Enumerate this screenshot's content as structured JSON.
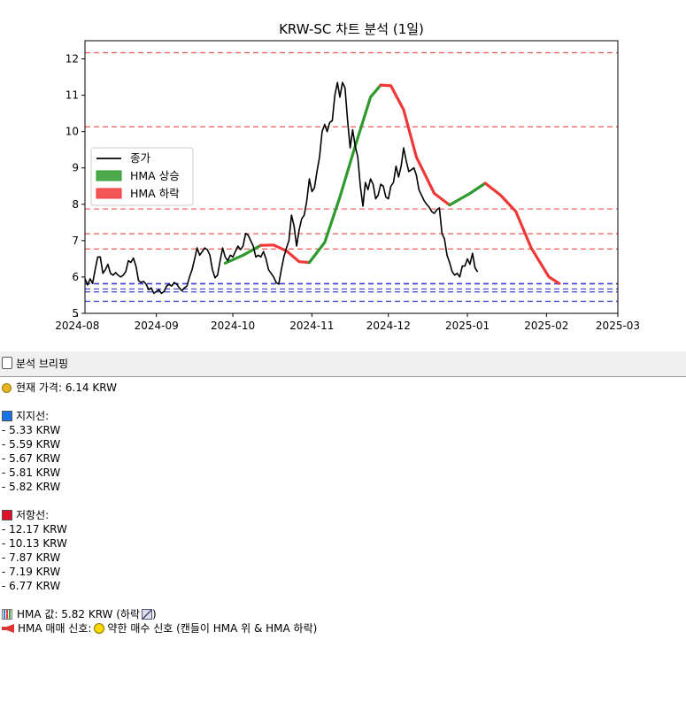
{
  "chart_data": {
    "type": "line",
    "title": "KRW-SC 차트 분석 (1일)",
    "x_start": "2024-08-04",
    "x_end": "2025-03-01",
    "ylim": [
      5,
      12.5
    ],
    "yticks": [
      5,
      6,
      7,
      8,
      9,
      10,
      11,
      12
    ],
    "xticks": [
      {
        "date": "2024-08-01",
        "label": "2024-08"
      },
      {
        "date": "2024-09-01",
        "label": "2024-09"
      },
      {
        "date": "2024-10-01",
        "label": "2024-10"
      },
      {
        "date": "2024-11-01",
        "label": "2024-11"
      },
      {
        "date": "2024-12-01",
        "label": "2024-12"
      },
      {
        "date": "2025-01-01",
        "label": "2025-01"
      },
      {
        "date": "2025-02-01",
        "label": "2025-02"
      },
      {
        "date": "2025-03-01",
        "label": "2025-03"
      }
    ],
    "legend": {
      "placement": "center-left",
      "entries": [
        {
          "label": "종가",
          "color": "#000000",
          "kind": "line"
        },
        {
          "label": "HMA 상승",
          "color": "#2e9a2e",
          "kind": "patch"
        },
        {
          "label": "HMA 하락",
          "color": "#f03838",
          "kind": "patch"
        }
      ]
    },
    "grid": false,
    "close_series": {
      "name": "종가",
      "color": "#000000",
      "points": [
        [
          "2024-08-04",
          5.96
        ],
        [
          "2024-08-05",
          5.78
        ],
        [
          "2024-08-06",
          5.95
        ],
        [
          "2024-08-07",
          5.82
        ],
        [
          "2024-08-08",
          6.2
        ],
        [
          "2024-08-09",
          6.55
        ],
        [
          "2024-08-10",
          6.55
        ],
        [
          "2024-08-11",
          6.1
        ],
        [
          "2024-08-12",
          6.2
        ],
        [
          "2024-08-13",
          6.35
        ],
        [
          "2024-08-14",
          6.1
        ],
        [
          "2024-08-15",
          6.05
        ],
        [
          "2024-08-16",
          6.12
        ],
        [
          "2024-08-17",
          6.05
        ],
        [
          "2024-08-18",
          6.0
        ],
        [
          "2024-08-19",
          6.05
        ],
        [
          "2024-08-20",
          6.15
        ],
        [
          "2024-08-21",
          6.45
        ],
        [
          "2024-08-22",
          6.4
        ],
        [
          "2024-08-23",
          6.52
        ],
        [
          "2024-08-24",
          6.3
        ],
        [
          "2024-08-25",
          5.9
        ],
        [
          "2024-08-26",
          5.85
        ],
        [
          "2024-08-27",
          5.88
        ],
        [
          "2024-08-28",
          5.8
        ],
        [
          "2024-08-29",
          5.65
        ],
        [
          "2024-08-30",
          5.7
        ],
        [
          "2024-08-31",
          5.55
        ],
        [
          "2024-09-01",
          5.6
        ],
        [
          "2024-09-02",
          5.65
        ],
        [
          "2024-09-03",
          5.55
        ],
        [
          "2024-09-04",
          5.6
        ],
        [
          "2024-09-05",
          5.75
        ],
        [
          "2024-09-06",
          5.8
        ],
        [
          "2024-09-07",
          5.75
        ],
        [
          "2024-09-08",
          5.85
        ],
        [
          "2024-09-09",
          5.8
        ],
        [
          "2024-09-10",
          5.7
        ],
        [
          "2024-09-11",
          5.62
        ],
        [
          "2024-09-12",
          5.7
        ],
        [
          "2024-09-13",
          5.75
        ],
        [
          "2024-09-14",
          6.0
        ],
        [
          "2024-09-15",
          6.2
        ],
        [
          "2024-09-16",
          6.5
        ],
        [
          "2024-09-17",
          6.8
        ],
        [
          "2024-09-18",
          6.6
        ],
        [
          "2024-09-19",
          6.7
        ],
        [
          "2024-09-20",
          6.8
        ],
        [
          "2024-09-21",
          6.75
        ],
        [
          "2024-09-22",
          6.6
        ],
        [
          "2024-09-23",
          6.2
        ],
        [
          "2024-09-24",
          5.98
        ],
        [
          "2024-09-25",
          6.05
        ],
        [
          "2024-09-26",
          6.45
        ],
        [
          "2024-09-27",
          6.8
        ],
        [
          "2024-09-28",
          6.55
        ],
        [
          "2024-09-29",
          6.45
        ],
        [
          "2024-09-30",
          6.6
        ],
        [
          "2024-10-01",
          6.55
        ],
        [
          "2024-10-02",
          6.7
        ],
        [
          "2024-10-03",
          6.85
        ],
        [
          "2024-10-04",
          6.75
        ],
        [
          "2024-10-05",
          6.85
        ],
        [
          "2024-10-06",
          7.2
        ],
        [
          "2024-10-07",
          7.15
        ],
        [
          "2024-10-08",
          7.0
        ],
        [
          "2024-10-09",
          6.85
        ],
        [
          "2024-10-10",
          6.55
        ],
        [
          "2024-10-11",
          6.6
        ],
        [
          "2024-10-12",
          6.55
        ],
        [
          "2024-10-13",
          6.7
        ],
        [
          "2024-10-14",
          6.5
        ],
        [
          "2024-10-15",
          6.2
        ],
        [
          "2024-10-16",
          6.1
        ],
        [
          "2024-10-17",
          6.0
        ],
        [
          "2024-10-18",
          5.85
        ],
        [
          "2024-10-19",
          5.8
        ],
        [
          "2024-10-20",
          6.2
        ],
        [
          "2024-10-21",
          6.55
        ],
        [
          "2024-10-22",
          6.8
        ],
        [
          "2024-10-23",
          7.0
        ],
        [
          "2024-10-24",
          7.7
        ],
        [
          "2024-10-25",
          7.4
        ],
        [
          "2024-10-26",
          6.85
        ],
        [
          "2024-10-27",
          7.3
        ],
        [
          "2024-10-28",
          7.6
        ],
        [
          "2024-10-29",
          7.7
        ],
        [
          "2024-10-30",
          8.1
        ],
        [
          "2024-10-31",
          8.7
        ],
        [
          "2024-11-01",
          8.35
        ],
        [
          "2024-11-02",
          8.45
        ],
        [
          "2024-11-03",
          8.9
        ],
        [
          "2024-11-04",
          9.3
        ],
        [
          "2024-11-05",
          10.0
        ],
        [
          "2024-11-06",
          10.2
        ],
        [
          "2024-11-07",
          10.0
        ],
        [
          "2024-11-08",
          10.25
        ],
        [
          "2024-11-09",
          10.3
        ],
        [
          "2024-11-10",
          11.0
        ],
        [
          "2024-11-11",
          11.35
        ],
        [
          "2024-11-12",
          10.95
        ],
        [
          "2024-11-13",
          11.35
        ],
        [
          "2024-11-14",
          11.2
        ],
        [
          "2024-11-15",
          10.3
        ],
        [
          "2024-11-16",
          9.55
        ],
        [
          "2024-11-17",
          10.05
        ],
        [
          "2024-11-18",
          9.6
        ],
        [
          "2024-11-19",
          9.3
        ],
        [
          "2024-11-20",
          8.5
        ],
        [
          "2024-11-21",
          7.95
        ],
        [
          "2024-11-22",
          8.6
        ],
        [
          "2024-11-23",
          8.4
        ],
        [
          "2024-11-24",
          8.7
        ],
        [
          "2024-11-25",
          8.55
        ],
        [
          "2024-11-26",
          8.15
        ],
        [
          "2024-11-27",
          8.25
        ],
        [
          "2024-11-28",
          8.55
        ],
        [
          "2024-11-29",
          8.5
        ],
        [
          "2024-11-30",
          8.2
        ],
        [
          "2024-12-01",
          8.15
        ],
        [
          "2024-12-02",
          8.5
        ],
        [
          "2024-12-03",
          8.6
        ],
        [
          "2024-12-04",
          9.05
        ],
        [
          "2024-12-05",
          8.75
        ],
        [
          "2024-12-06",
          9.05
        ],
        [
          "2024-12-07",
          9.55
        ],
        [
          "2024-12-08",
          9.2
        ],
        [
          "2024-12-09",
          8.9
        ],
        [
          "2024-12-10",
          8.95
        ],
        [
          "2024-12-11",
          9.0
        ],
        [
          "2024-12-12",
          8.8
        ],
        [
          "2024-12-13",
          8.4
        ],
        [
          "2024-12-14",
          8.25
        ],
        [
          "2024-12-15",
          8.1
        ],
        [
          "2024-12-16",
          8.0
        ],
        [
          "2024-12-17",
          7.92
        ],
        [
          "2024-12-18",
          7.8
        ],
        [
          "2024-12-19",
          7.75
        ],
        [
          "2024-12-20",
          7.85
        ],
        [
          "2024-12-21",
          7.9
        ],
        [
          "2024-12-22",
          7.2
        ],
        [
          "2024-12-23",
          7.05
        ],
        [
          "2024-12-24",
          6.6
        ],
        [
          "2024-12-25",
          6.4
        ],
        [
          "2024-12-26",
          6.15
        ],
        [
          "2024-12-27",
          6.05
        ],
        [
          "2024-12-28",
          6.1
        ],
        [
          "2024-12-29",
          6.0
        ],
        [
          "2024-12-30",
          6.3
        ],
        [
          "2024-12-31",
          6.3
        ],
        [
          "2025-01-01",
          6.5
        ],
        [
          "2025-01-02",
          6.35
        ],
        [
          "2025-01-03",
          6.65
        ],
        [
          "2025-01-04",
          6.25
        ],
        [
          "2025-01-05",
          6.14
        ]
      ]
    },
    "hma_series": {
      "name": "HMA",
      "points": [
        [
          "2024-09-28",
          6.38
        ],
        [
          "2024-10-05",
          6.6
        ],
        [
          "2024-10-12",
          6.87
        ],
        [
          "2024-10-17",
          6.88
        ],
        [
          "2024-10-22",
          6.72
        ],
        [
          "2024-10-27",
          6.42
        ],
        [
          "2024-10-31",
          6.4
        ],
        [
          "2024-11-06",
          6.95
        ],
        [
          "2024-11-12",
          8.2
        ],
        [
          "2024-11-18",
          9.6
        ],
        [
          "2024-11-24",
          10.95
        ],
        [
          "2024-11-28",
          11.28
        ],
        [
          "2024-12-02",
          11.26
        ],
        [
          "2024-12-07",
          10.6
        ],
        [
          "2024-12-12",
          9.3
        ],
        [
          "2024-12-19",
          8.3
        ],
        [
          "2024-12-25",
          7.98
        ],
        [
          "2025-01-02",
          8.3
        ],
        [
          "2025-01-08",
          8.58
        ],
        [
          "2025-01-14",
          8.25
        ],
        [
          "2025-01-20",
          7.8
        ],
        [
          "2025-01-26",
          6.8
        ],
        [
          "2025-02-02",
          6.0
        ],
        [
          "2025-02-06",
          5.82
        ]
      ],
      "segments": [
        {
          "trend": "상승",
          "color": "#2e9a2e",
          "from": 0,
          "to": 2
        },
        {
          "trend": "하락",
          "color": "#f03838",
          "from": 2,
          "to": 6
        },
        {
          "trend": "상승",
          "color": "#2e9a2e",
          "from": 6,
          "to": 11
        },
        {
          "trend": "하락",
          "color": "#f03838",
          "from": 11,
          "to": 16
        },
        {
          "trend": "상승",
          "color": "#2e9a2e",
          "from": 16,
          "to": 18
        },
        {
          "trend": "하락",
          "color": "#f03838",
          "from": 18,
          "to": 23
        }
      ]
    },
    "support_lines": [
      5.33,
      5.59,
      5.67,
      5.81,
      5.82
    ],
    "resistance_lines": [
      12.17,
      10.13,
      7.87,
      7.19,
      6.77
    ],
    "support_color": "#4a4ad8",
    "resistance_color": "#f06a6a"
  },
  "briefing": {
    "header": "분석 브리핑",
    "current_price": "현재 가격: 6.14 KRW",
    "support_title": "지지선:",
    "support_items": [
      "- 5.33 KRW",
      "- 5.59 KRW",
      "- 5.67 KRW",
      "- 5.81 KRW",
      "- 5.82 KRW"
    ],
    "resistance_title": "저항선:",
    "resistance_items": [
      "- 12.17 KRW",
      "- 10.13 KRW",
      "- 7.87 KRW",
      "- 7.19 KRW",
      "- 6.77 KRW"
    ],
    "hma_value": "HMA 값: 5.82 KRW (하락",
    "hma_value_close": ")",
    "signal_prefix": "HMA 매매 신호:",
    "signal_text": "약한 매수 신호 (캔들이 HMA 위 & HMA 하락)",
    "support_color": "#1a73e8",
    "resistance_color": "#e0102a"
  }
}
